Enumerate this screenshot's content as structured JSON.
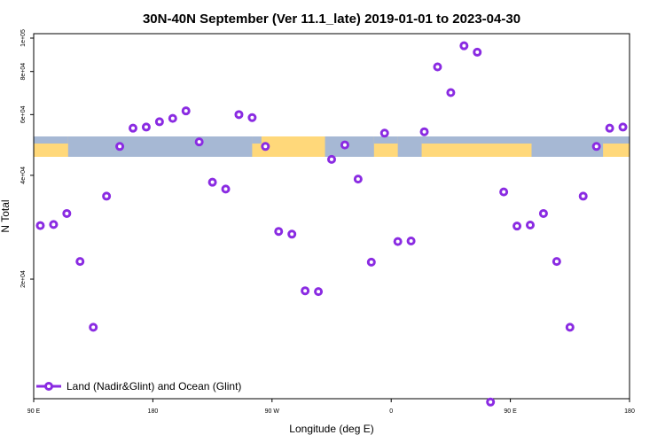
{
  "chart_data": {
    "type": "scatter",
    "title": "30N-40N September (Ver 11.1_late)   2019-01-01 to 2023-04-30",
    "xlabel": "Longitude (deg E)",
    "ylabel": "N Total",
    "x_ticks": [
      {
        "value": 90,
        "label": "90 E"
      },
      {
        "value": 180,
        "label": "180"
      },
      {
        "value": 270,
        "label": "90 W"
      },
      {
        "value": 360,
        "label": "0"
      },
      {
        "value": 450,
        "label": "90 E"
      },
      {
        "value": 540,
        "label": "180"
      }
    ],
    "xlim": [
      90,
      540
    ],
    "y_ticks": [
      {
        "value": 20000,
        "label": "2e+04"
      },
      {
        "value": 40000,
        "label": "4e+04"
      },
      {
        "value": 60000,
        "label": "6e+04"
      },
      {
        "value": 80000,
        "label": "8e+04"
      },
      {
        "value": 100000,
        "label": "1e+05"
      }
    ],
    "y_scale": "log",
    "ylim": [
      9000,
      103000
    ],
    "grid": false,
    "legend_position": "bottom-left",
    "series": [
      {
        "name": "Land (Nadir&Glint) and Ocean (Glint)",
        "color": "#8a2be2",
        "marker": "open-circle",
        "x": [
          95,
          105,
          115,
          125,
          135,
          145,
          155,
          165,
          175,
          185,
          195,
          205,
          215,
          225,
          235,
          245,
          255,
          265,
          275,
          285,
          295,
          305,
          315,
          325,
          335,
          345,
          355,
          365,
          375,
          385,
          395,
          405,
          415,
          425,
          435,
          445,
          455,
          465,
          475,
          485,
          495,
          505,
          515,
          525,
          535
        ],
        "y": [
          28600,
          28800,
          31000,
          22500,
          14500,
          34800,
          48500,
          54800,
          55200,
          57200,
          58500,
          61500,
          50000,
          38200,
          36500,
          60000,
          58800,
          48500,
          27500,
          27000,
          18500,
          18400,
          44500,
          49000,
          39000,
          22400,
          53000,
          25700,
          25800,
          53500,
          82500,
          69500,
          95000,
          91000,
          8800,
          35800,
          28500,
          28700,
          31000,
          22500,
          14500,
          34800,
          48500,
          54800,
          55200
        ]
      }
    ]
  },
  "map_colors": {
    "land": "#ffd87a",
    "ocean": "#a6b8d4"
  }
}
